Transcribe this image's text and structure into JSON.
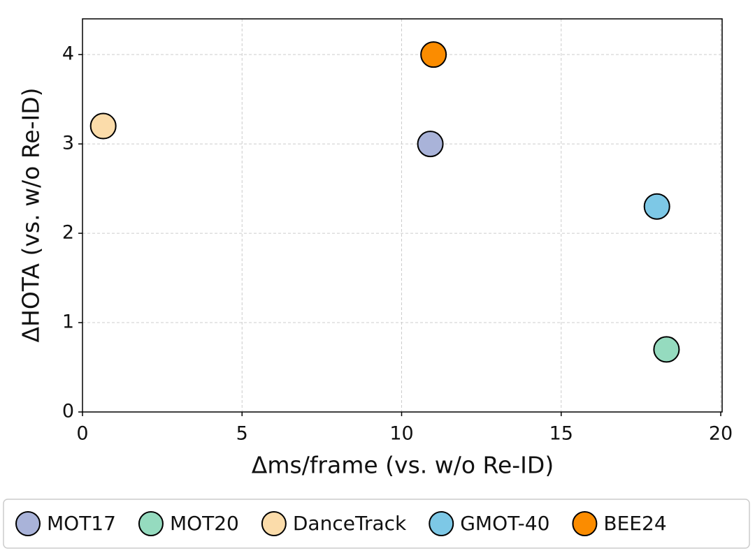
{
  "chart_data": {
    "type": "scatter",
    "x_label": "Δms/frame (vs. w/o Re-ID)",
    "y_label": "ΔHOTA (vs. w/o Re-ID)",
    "xlim": [
      0,
      20
    ],
    "ylim": [
      0,
      4.4
    ],
    "xticks": [
      0,
      5,
      10,
      15,
      20
    ],
    "yticks": [
      0,
      1,
      2,
      3,
      4
    ],
    "grid": true,
    "legend": "bottom",
    "series": [
      {
        "name": "MOT17",
        "color": "#a9b3d9",
        "x": [
          10.9
        ],
        "values": [
          3.0
        ]
      },
      {
        "name": "MOT20",
        "color": "#95dbbf",
        "x": [
          18.3
        ],
        "values": [
          0.7
        ]
      },
      {
        "name": "DanceTrack",
        "color": "#fbdcaa",
        "x": [
          0.65
        ],
        "values": [
          3.2
        ]
      },
      {
        "name": "GMOT-40",
        "color": "#7dc8e6",
        "x": [
          18.0
        ],
        "values": [
          2.3
        ]
      },
      {
        "name": "BEE24",
        "color": "#fb8c00",
        "x": [
          11.0
        ],
        "values": [
          4.0
        ]
      }
    ]
  }
}
